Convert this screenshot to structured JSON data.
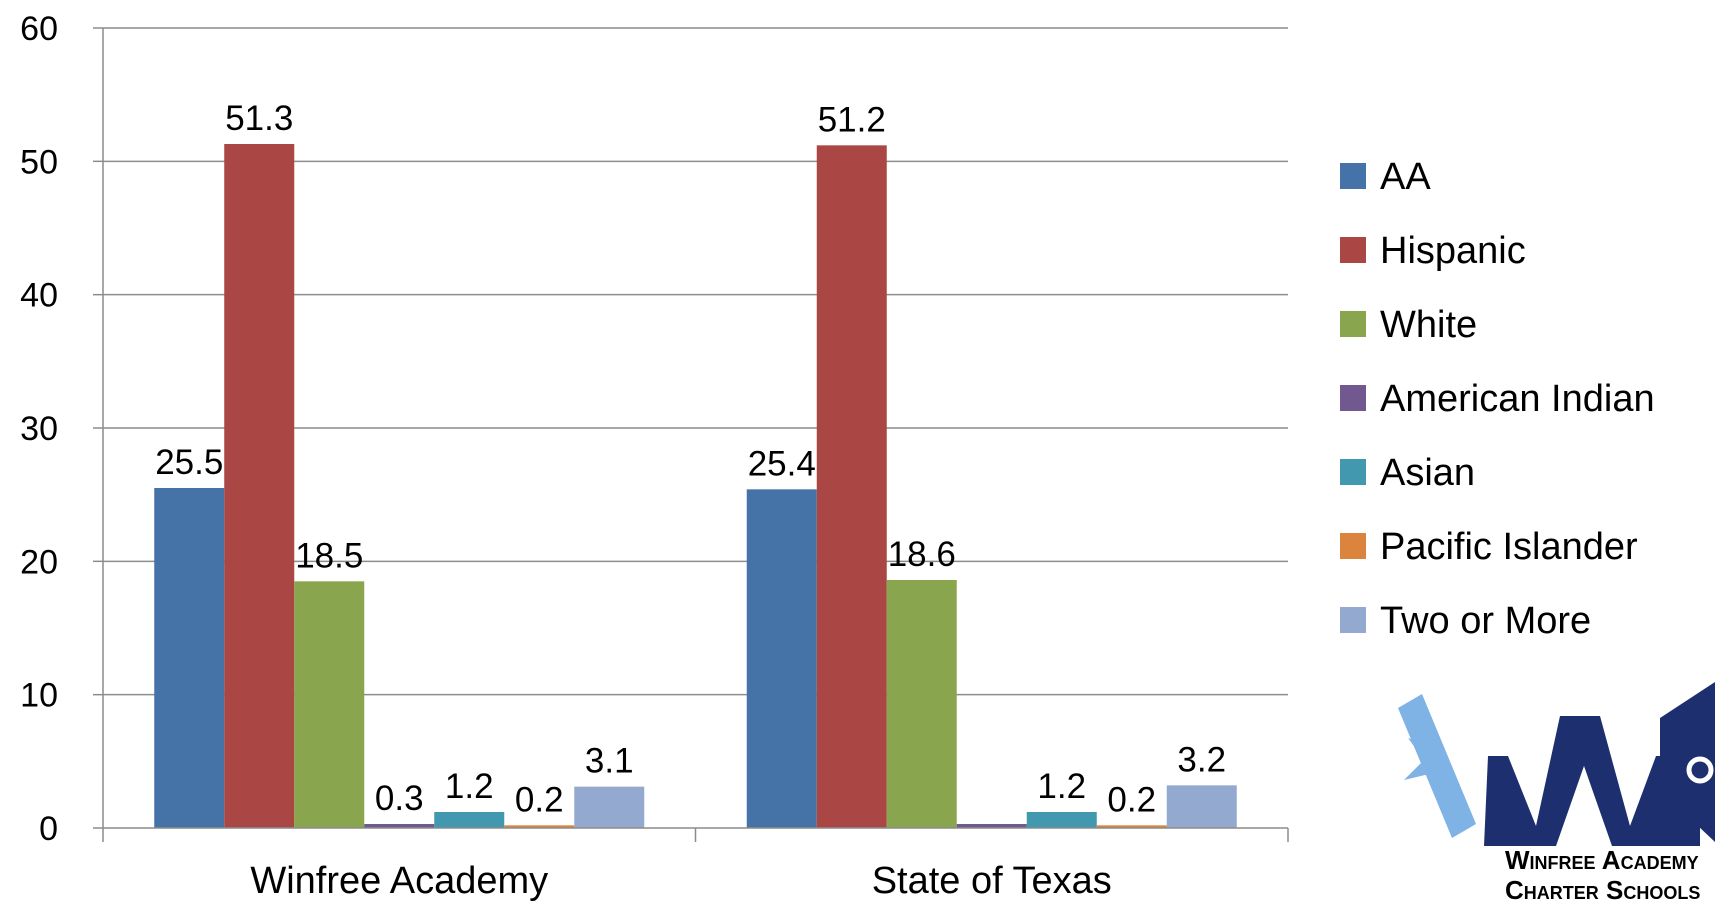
{
  "chart_data": {
    "type": "bar",
    "title": "",
    "xlabel": "",
    "ylabel": "",
    "ylim": [
      0,
      60
    ],
    "yticks": [
      0,
      10,
      20,
      30,
      40,
      50,
      60
    ],
    "grid": true,
    "legend_position": "right",
    "categories": [
      "Winfree Academy",
      "State of Texas"
    ],
    "series": [
      {
        "name": "AA",
        "color": "#4572a7",
        "values": [
          25.5,
          25.4
        ],
        "labels": [
          "25.5",
          "25.4"
        ]
      },
      {
        "name": "Hispanic",
        "color": "#aa4643",
        "values": [
          51.3,
          51.2
        ],
        "labels": [
          "51.3",
          "51.2"
        ]
      },
      {
        "name": "White",
        "color": "#89a54e",
        "values": [
          18.5,
          18.6
        ],
        "labels": [
          "18.5",
          "18.6"
        ]
      },
      {
        "name": "American Indian",
        "color": "#71588f",
        "values": [
          0.3,
          0.3
        ],
        "labels": [
          "0.3",
          ""
        ]
      },
      {
        "name": "Asian",
        "color": "#4198af",
        "values": [
          1.2,
          1.2
        ],
        "labels": [
          "1.2",
          "1.2"
        ]
      },
      {
        "name": "Pacific Islander",
        "color": "#db843d",
        "values": [
          0.2,
          0.2
        ],
        "labels": [
          "0.2",
          "0.2"
        ]
      },
      {
        "name": "Two or More",
        "color": "#93a9cf",
        "values": [
          3.1,
          3.2
        ],
        "labels": [
          "3.1",
          "3.2"
        ]
      }
    ]
  },
  "logo": {
    "name": "winfree-academy-logo",
    "line1": "Winfree Academy",
    "line2": "Charter Schools",
    "colors": {
      "navy": "#1d2f6f",
      "light_blue": "#7fb2e5"
    }
  }
}
